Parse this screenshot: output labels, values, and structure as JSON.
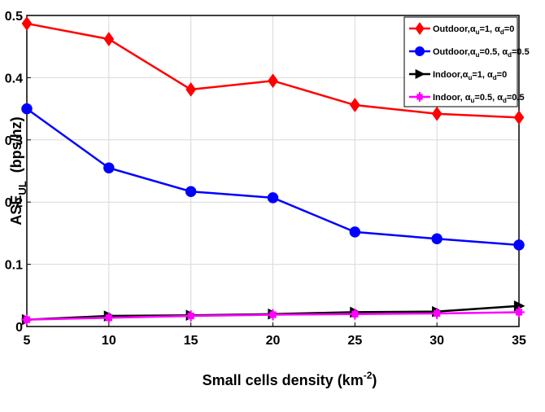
{
  "chart_data": {
    "type": "line",
    "xlabel": {
      "main": "Small cells density (km",
      "sup": "-2",
      "tail": ")"
    },
    "ylabel": {
      "main": "ASE",
      "sub": "UL",
      "tail": "  (bps/hz)"
    },
    "x": [
      5,
      10,
      15,
      20,
      25,
      30,
      35
    ],
    "xlim": [
      5,
      35
    ],
    "ylim": [
      0,
      0.5
    ],
    "xticks": [
      "5",
      "10",
      "15",
      "20",
      "25",
      "30",
      "35"
    ],
    "yticks": [
      "0",
      "0.1",
      "0.2",
      "0.3",
      "0.4",
      "0.5"
    ],
    "grid": true,
    "legend_position": "top-right",
    "series": [
      {
        "name": "Outdoor,αu=1, αd=0",
        "legend": {
          "prefix": "Outdoor,",
          "s1": "α",
          "sub1": "u",
          "mid": "=1, ",
          "s2": "α",
          "sub2": "d",
          "tail": "=0"
        },
        "color": "#ff0000",
        "marker": "diamond",
        "values": [
          0.487,
          0.462,
          0.381,
          0.395,
          0.356,
          0.342,
          0.336
        ]
      },
      {
        "name": "Outdoor,αu=0.5, αd=0.5",
        "legend": {
          "prefix": "Outdoor,",
          "s1": "α",
          "sub1": "u",
          "mid": "=0.5, ",
          "s2": "α",
          "sub2": "d",
          "tail": "=0.5"
        },
        "color": "#0000ff",
        "marker": "circle",
        "values": [
          0.35,
          0.255,
          0.217,
          0.207,
          0.152,
          0.141,
          0.131
        ]
      },
      {
        "name": "Indoor,αu=1, αd=0",
        "legend": {
          "prefix": "Indoor,",
          "s1": "α",
          "sub1": "u",
          "mid": "=1, ",
          "s2": "α",
          "sub2": "d",
          "tail": "=0"
        },
        "color": "#000000",
        "marker": "triangle-right",
        "values": [
          0.011,
          0.017,
          0.018,
          0.02,
          0.023,
          0.024,
          0.033
        ]
      },
      {
        "name": "Indoor, αu=0.5, αd=0.5",
        "legend": {
          "prefix": "Indoor, ",
          "s1": "α",
          "sub1": "u",
          "mid": "=0.5, ",
          "s2": "α",
          "sub2": "d",
          "tail": "=0.5"
        },
        "color": "#ff00ff",
        "marker": "plus-square",
        "values": [
          0.011,
          0.014,
          0.017,
          0.019,
          0.02,
          0.021,
          0.023
        ]
      }
    ]
  }
}
